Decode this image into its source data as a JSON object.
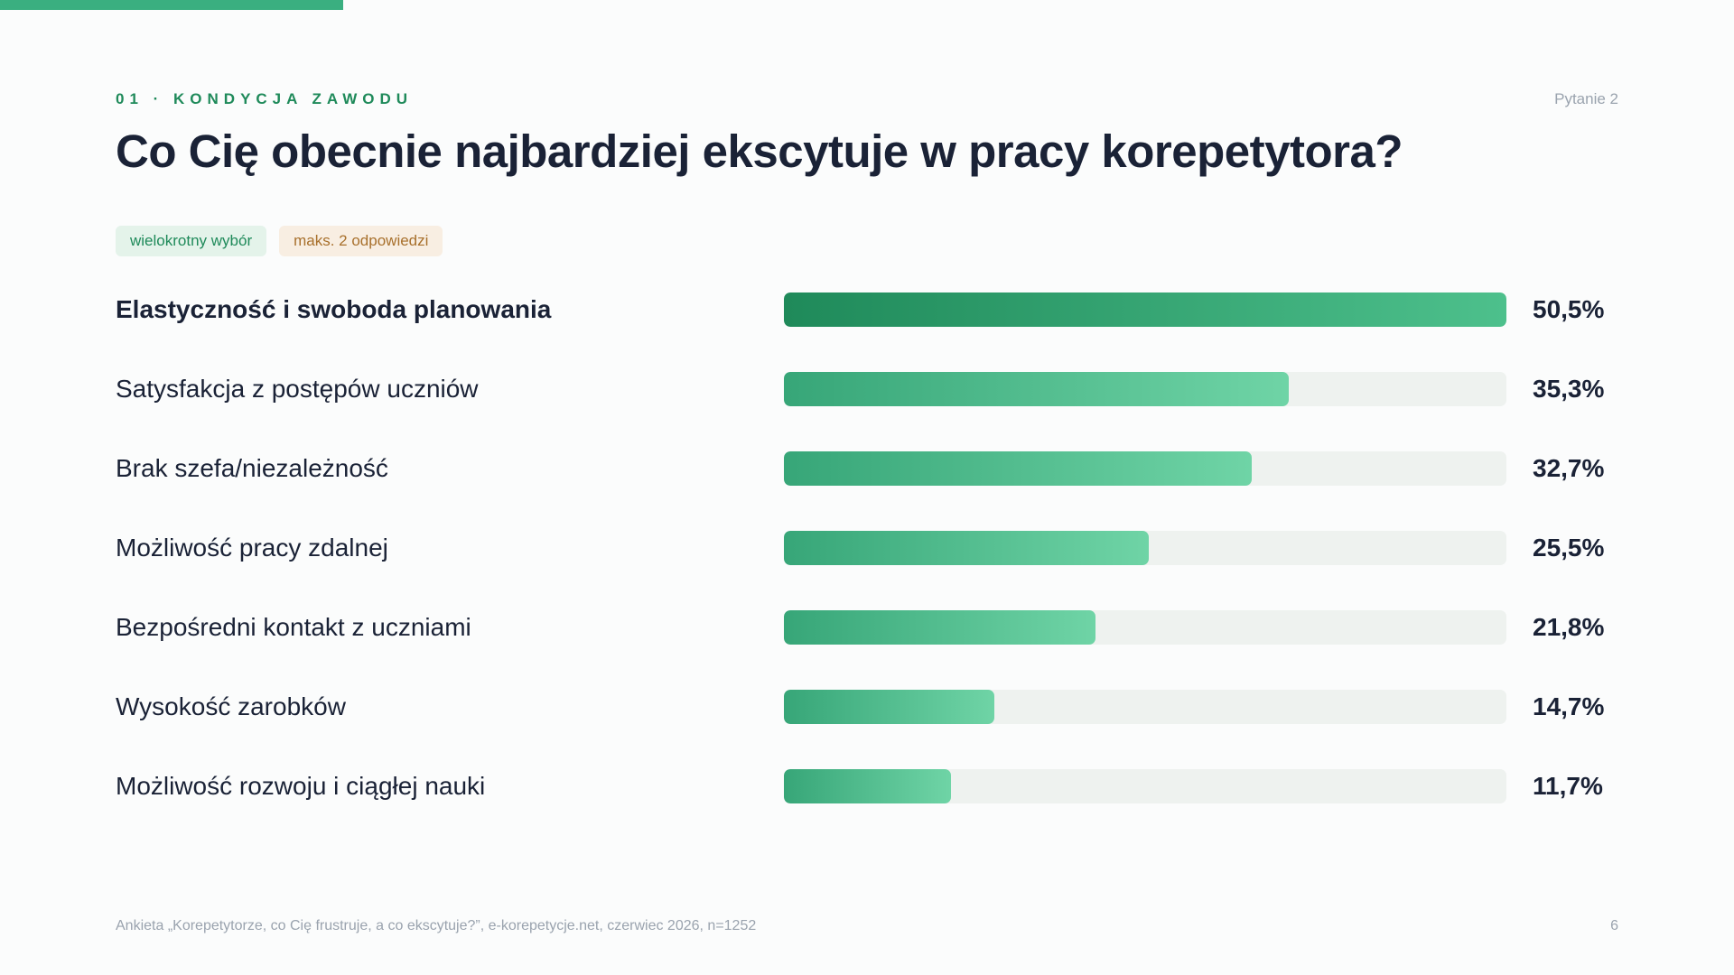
{
  "header": {
    "kicker": "01 · KONDYCJA ZAWODU",
    "question_number": "Pytanie 2",
    "title": "Co Cię obecnie najbardziej ekscytuje w pracy korepetytora?"
  },
  "tags": {
    "type": "wielokrotny wybór",
    "limit": "maks. 2 odpowiedzi"
  },
  "chart_data": {
    "type": "bar",
    "orientation": "horizontal",
    "categories": [
      "Elastyczność i swoboda planowania",
      "Satysfakcja z postępów uczniów",
      "Brak szefa/niezależność",
      "Możliwość pracy zdalnej",
      "Bezpośredni kontakt z uczniami",
      "Wysokość zarobków",
      "Możliwość rozwoju i ciągłej nauki"
    ],
    "values": [
      50.5,
      35.3,
      32.7,
      25.5,
      21.8,
      14.7,
      11.7
    ],
    "value_labels": [
      "50,5%",
      "35,3%",
      "32,7%",
      "25,5%",
      "21,8%",
      "14,7%",
      "11,7%"
    ],
    "xlim": [
      0,
      50.5
    ],
    "highlight_color": "#1f8a5a",
    "bar_color": "#37a678"
  },
  "footer": {
    "source": "Ankieta „Korepetytorze, co Cię frustruje, a co ekscytuje?”, e-korepetycje.net, czerwiec 2026, n=1252",
    "page": "6"
  }
}
